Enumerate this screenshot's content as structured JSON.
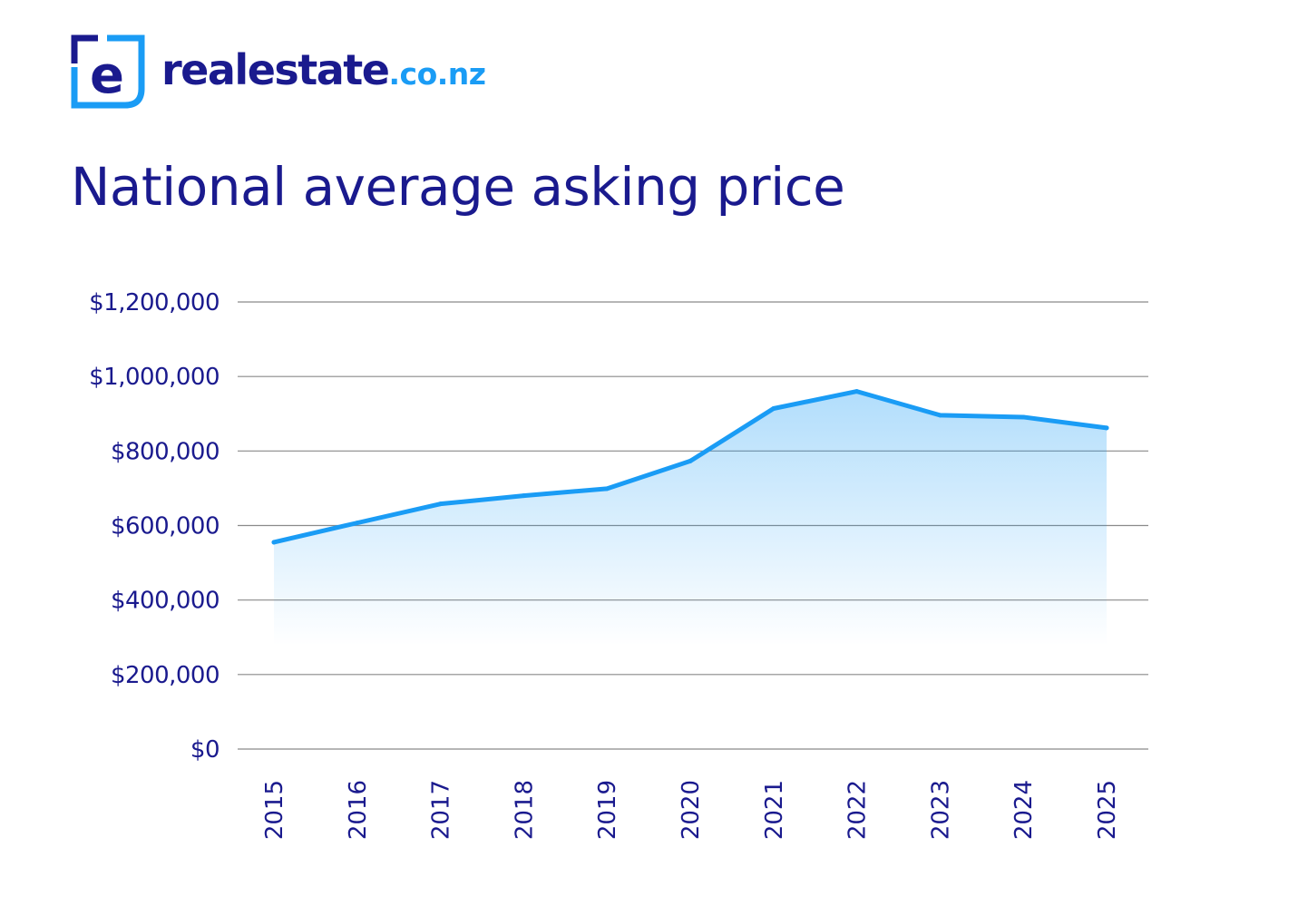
{
  "brand": {
    "name": "realestate",
    "tld": ".co.nz",
    "logo_letter": "e",
    "colors": {
      "navy": "#1a1a8e",
      "blue": "#1a9cf5"
    }
  },
  "chart_data": {
    "type": "area",
    "title": "National average asking price",
    "xlabel": "",
    "ylabel": "",
    "categories": [
      "2015",
      "2016",
      "2017",
      "2018",
      "2019",
      "2020",
      "2021",
      "2022",
      "2023",
      "2024",
      "2025"
    ],
    "series": [
      {
        "name": "National average asking price",
        "values": [
          555000,
          607000,
          658000,
          680000,
          699000,
          773000,
          914000,
          960000,
          896000,
          891000,
          862000
        ]
      }
    ],
    "ylim": [
      0,
      1200000
    ],
    "yticks": [
      0,
      200000,
      400000,
      600000,
      800000,
      1000000,
      1200000
    ],
    "ytick_labels": [
      "$0",
      "$200,000",
      "$400,000",
      "$600,000",
      "$800,000",
      "$1,000,000",
      "$1,200,000"
    ],
    "grid": true,
    "legend": "none",
    "line_color": "#1a9cf5",
    "fill_color": "#1a9cf5"
  }
}
